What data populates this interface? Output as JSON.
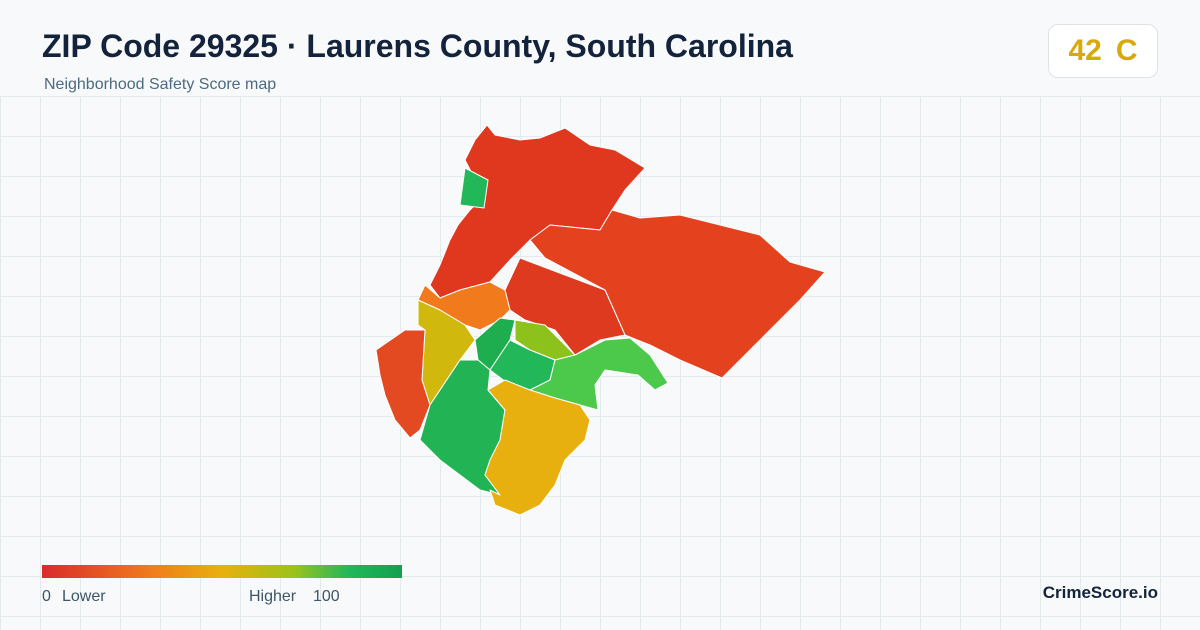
{
  "header": {
    "title": "ZIP Code 29325 · Laurens County, South Carolina",
    "subtitle": "Neighborhood Safety Score map"
  },
  "score": {
    "value": 42,
    "grade": "C"
  },
  "legend": {
    "min": 0,
    "min_label": "Lower",
    "max_label": "Higher",
    "max": 100
  },
  "footer": {
    "brand": "CrimeScore.io"
  }
}
